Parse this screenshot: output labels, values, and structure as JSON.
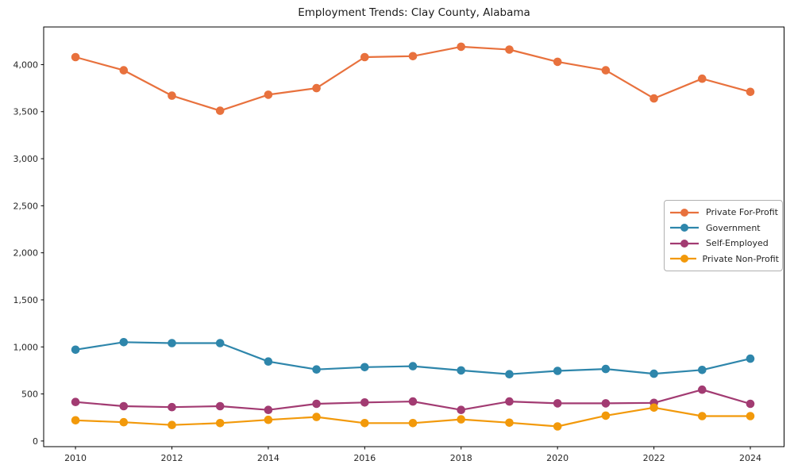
{
  "page_title": "Employment Trends: Clay County, Alabama",
  "chart_data": {
    "type": "line",
    "title": "Employment Trends: Clay County, Alabama",
    "xlabel": "",
    "ylabel": "",
    "x": [
      2010,
      2011,
      2012,
      2013,
      2014,
      2015,
      2016,
      2017,
      2018,
      2019,
      2020,
      2021,
      2022,
      2023,
      2024
    ],
    "series": [
      {
        "name": "Private For-Profit",
        "color": "#E8713D",
        "values": [
          4080,
          3940,
          3670,
          3510,
          3680,
          3750,
          4080,
          4090,
          4190,
          4160,
          4030,
          3940,
          3640,
          3850,
          3710
        ]
      },
      {
        "name": "Government",
        "color": "#2E86AB",
        "values": [
          970,
          1050,
          1040,
          1040,
          845,
          760,
          785,
          795,
          750,
          710,
          745,
          765,
          715,
          755,
          875
        ]
      },
      {
        "name": "Self-Employed",
        "color": "#A23B72",
        "values": [
          415,
          370,
          360,
          370,
          330,
          395,
          410,
          420,
          330,
          420,
          400,
          400,
          405,
          545,
          395
        ]
      },
      {
        "name": "Private Non-Profit",
        "color": "#F2990A",
        "values": [
          220,
          200,
          170,
          190,
          225,
          255,
          190,
          190,
          230,
          195,
          155,
          270,
          355,
          265,
          265
        ]
      }
    ],
    "xticks": [
      2010,
      2012,
      2014,
      2016,
      2018,
      2020,
      2022,
      2024
    ],
    "xtick_labels": [
      "2010",
      "2012",
      "2014",
      "2016",
      "2018",
      "2020",
      "2022",
      "2024"
    ],
    "yticks": [
      0,
      500,
      1000,
      1500,
      2000,
      2500,
      3000,
      3500,
      4000
    ],
    "ytick_labels": [
      "0",
      "500",
      "1,000",
      "1,500",
      "2,000",
      "2,500",
      "3,000",
      "3,500",
      "4,000"
    ],
    "xlim": [
      2009.34,
      2024.7
    ],
    "ylim": [
      -60,
      4400
    ],
    "grid": false,
    "legend_position": "center right",
    "marker": "circle",
    "axis_color": "#000000",
    "tick_label_color": "#262626"
  }
}
